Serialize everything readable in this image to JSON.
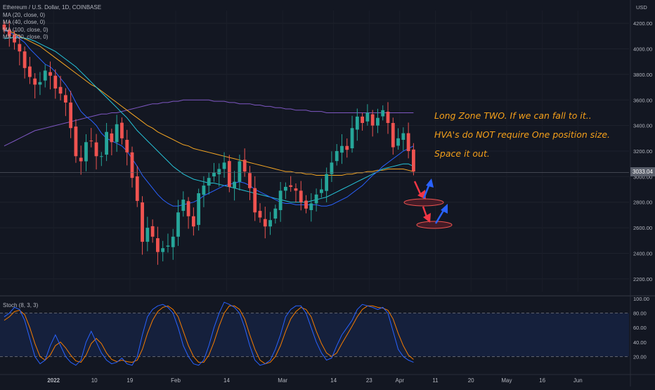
{
  "header": {
    "symbol": "Ethereum / U.S. Dollar, 1D, COINBASE",
    "ma_labels": [
      "MA (20, close, 0)",
      "MA (40, close, 0)",
      "MA (100, close, 0)",
      "MA (200, close, 0)"
    ],
    "currency": "USD"
  },
  "last_price": "3033.04",
  "annotations": [
    "Long Zone TWO. If we can fall to it..",
    "HVA's do NOT require One position size.",
    "Space it out."
  ],
  "stoch": {
    "label": "Stoch (8, 3, 3)"
  },
  "colors": {
    "background": "#131722",
    "up": "#26a69a",
    "down": "#ef5350",
    "ma20": "#2962ff",
    "ma40": "#26c6da",
    "ma100": "#f5a623",
    "ma200": "#7e57c2",
    "stoch_k": "#2962ff",
    "stoch_d": "#f57c00",
    "annotation": "#f5a01a"
  },
  "chart_data": {
    "type": "candlestick",
    "x_ticks": [
      "2022",
      "10",
      "19",
      "Feb",
      "14",
      "Mar",
      "14",
      "23",
      "Apr",
      "11",
      "20",
      "May",
      "16",
      "Jun"
    ],
    "y_ticks": [
      "2200.00",
      "2400.00",
      "2600.00",
      "2800.00",
      "3000.00",
      "3200.00",
      "3400.00",
      "3600.00",
      "3800.00",
      "4000.00",
      "4200.00"
    ],
    "ylim": [
      2100,
      4300
    ],
    "close": [
      4150,
      4100,
      4050,
      3980,
      3850,
      3780,
      3720,
      3740,
      3830,
      3790,
      3690,
      3650,
      3580,
      3380,
      3160,
      3120,
      3270,
      3280,
      3160,
      3160,
      3350,
      3270,
      3410,
      3300,
      3190,
      2990,
      2810,
      2490,
      2600,
      2530,
      2410,
      2440,
      2460,
      2530,
      2720,
      2820,
      2690,
      2610,
      2870,
      2930,
      2990,
      3030,
      3060,
      3110,
      2920,
      2960,
      3120,
      3040,
      2910,
      2720,
      2680,
      2610,
      2660,
      2750,
      2890,
      2920,
      2920,
      2890,
      2800,
      2750,
      2790,
      2860,
      2900,
      3020,
      3110,
      3200,
      3240,
      3210,
      3380,
      3470,
      3420,
      3500,
      3400,
      3460,
      3520,
      3420,
      3230,
      3300,
      3340,
      3200,
      3040
    ],
    "ma20": [
      4150,
      4130,
      4110,
      4080,
      4050,
      4000,
      3960,
      3920,
      3880,
      3860,
      3820,
      3770,
      3720,
      3660,
      3580,
      3510,
      3470,
      3440,
      3400,
      3340,
      3300,
      3280,
      3260,
      3240,
      3200,
      3140,
      3080,
      3010,
      2960,
      2910,
      2860,
      2820,
      2790,
      2770,
      2770,
      2780,
      2790,
      2800,
      2820,
      2850,
      2870,
      2890,
      2910,
      2930,
      2940,
      2950,
      2960,
      2950,
      2930,
      2900,
      2880,
      2860,
      2840,
      2820,
      2800,
      2790,
      2790,
      2780,
      2780,
      2780,
      2780,
      2780,
      2770,
      2770,
      2780,
      2800,
      2820,
      2840,
      2870,
      2900,
      2930,
      2970,
      3010,
      3040,
      3080,
      3110,
      3140,
      3170,
      3200,
      3220,
      3240
    ],
    "ma40": [
      4080,
      4085,
      4090,
      4090,
      4085,
      4075,
      4060,
      4040,
      4020,
      4000,
      3980,
      3950,
      3920,
      3890,
      3860,
      3820,
      3780,
      3740,
      3700,
      3660,
      3620,
      3580,
      3540,
      3500,
      3460,
      3410,
      3360,
      3320,
      3280,
      3240,
      3200,
      3160,
      3120,
      3080,
      3050,
      3020,
      3000,
      2980,
      2970,
      2960,
      2950,
      2950,
      2940,
      2930,
      2920,
      2910,
      2900,
      2890,
      2880,
      2870,
      2860,
      2850,
      2840,
      2830,
      2820,
      2810,
      2800,
      2800,
      2800,
      2800,
      2810,
      2820,
      2830,
      2840,
      2860,
      2880,
      2900,
      2920,
      2940,
      2960,
      2980,
      3000,
      3020,
      3040,
      3060,
      3070,
      3080,
      3090,
      3100,
      3100,
      3080
    ],
    "ma100": [
      4150,
      4140,
      4120,
      4100,
      4080,
      4060,
      4040,
      4020,
      3990,
      3960,
      3930,
      3900,
      3870,
      3840,
      3810,
      3780,
      3750,
      3720,
      3700,
      3670,
      3640,
      3610,
      3580,
      3550,
      3520,
      3490,
      3460,
      3430,
      3400,
      3380,
      3350,
      3330,
      3310,
      3290,
      3270,
      3250,
      3240,
      3220,
      3210,
      3200,
      3190,
      3180,
      3170,
      3160,
      3150,
      3140,
      3130,
      3120,
      3110,
      3100,
      3090,
      3080,
      3070,
      3060,
      3050,
      3040,
      3040,
      3030,
      3030,
      3020,
      3020,
      3010,
      3010,
      3010,
      3010,
      3010,
      3010,
      3020,
      3020,
      3030,
      3030,
      3040,
      3040,
      3050,
      3050,
      3060,
      3060,
      3060,
      3060,
      3050,
      3040
    ],
    "ma200": [
      3240,
      3260,
      3280,
      3300,
      3320,
      3340,
      3360,
      3370,
      3380,
      3390,
      3400,
      3410,
      3420,
      3430,
      3440,
      3450,
      3460,
      3470,
      3480,
      3490,
      3490,
      3500,
      3500,
      3510,
      3520,
      3530,
      3540,
      3550,
      3560,
      3570,
      3570,
      3580,
      3580,
      3590,
      3590,
      3600,
      3600,
      3600,
      3600,
      3600,
      3600,
      3590,
      3590,
      3590,
      3580,
      3580,
      3570,
      3570,
      3570,
      3560,
      3560,
      3550,
      3550,
      3540,
      3540,
      3530,
      3530,
      3520,
      3520,
      3520,
      3510,
      3510,
      3510,
      3500,
      3500,
      3500,
      3500,
      3500,
      3500,
      3500,
      3500,
      3500,
      3500,
      3500,
      3500,
      3500,
      3500,
      3500,
      3500,
      3500,
      3500
    ],
    "stoch_y_ticks": [
      "20.00",
      "40.00",
      "60.00",
      "80.00",
      "100.00"
    ],
    "stoch_ylim": [
      0,
      100
    ],
    "stoch_bands": [
      20,
      80
    ],
    "stoch_k": [
      75,
      80,
      88,
      85,
      70,
      45,
      20,
      10,
      15,
      35,
      50,
      35,
      20,
      12,
      8,
      15,
      40,
      55,
      40,
      25,
      15,
      10,
      12,
      18,
      10,
      8,
      20,
      50,
      75,
      85,
      90,
      92,
      88,
      80,
      60,
      35,
      20,
      10,
      8,
      15,
      35,
      60,
      80,
      95,
      92,
      88,
      80,
      60,
      35,
      15,
      8,
      10,
      15,
      30,
      50,
      75,
      85,
      90,
      90,
      80,
      60,
      40,
      25,
      15,
      18,
      35,
      50,
      60,
      70,
      85,
      92,
      90,
      88,
      85,
      88,
      80,
      55,
      30,
      20,
      15,
      12
    ],
    "stoch_d": [
      70,
      75,
      82,
      84,
      78,
      60,
      38,
      20,
      15,
      22,
      35,
      40,
      32,
      22,
      14,
      12,
      22,
      38,
      45,
      38,
      25,
      16,
      13,
      15,
      13,
      12,
      15,
      30,
      52,
      70,
      82,
      88,
      90,
      85,
      75,
      55,
      35,
      20,
      12,
      12,
      22,
      40,
      62,
      80,
      90,
      90,
      85,
      72,
      50,
      30,
      15,
      10,
      12,
      20,
      35,
      55,
      72,
      82,
      88,
      85,
      75,
      55,
      38,
      25,
      20,
      25,
      38,
      50,
      62,
      75,
      85,
      90,
      90,
      88,
      87,
      84,
      72,
      52,
      35,
      22,
      16
    ]
  }
}
